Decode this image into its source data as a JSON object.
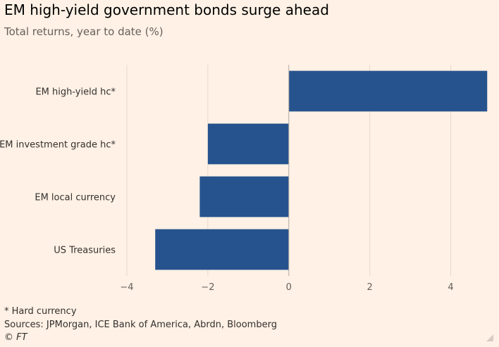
{
  "header": {
    "title": "EM high-yield government bonds surge ahead",
    "subtitle": "Total returns, year to date (%)"
  },
  "footer": {
    "footnote": "* Hard currency",
    "source": "Sources: JPMorgan, ICE Bank of America, Abrdn, Bloomberg",
    "copyright": "© FT"
  },
  "icons": {
    "corner": "resize-handle-icon"
  },
  "colors": {
    "background": "#fff1e5",
    "bar": "#26538d",
    "grid": "#e6d9ce",
    "zero_line": "#b3aaa4"
  },
  "chart_data": {
    "type": "bar",
    "orientation": "horizontal",
    "title": "EM high-yield government bonds surge ahead",
    "subtitle": "Total returns, year to date (%)",
    "categories": [
      "EM high-yield hc*",
      "EM investment grade hc*",
      "EM local currency",
      "US Treasuries"
    ],
    "values": [
      4.9,
      -2.0,
      -2.2,
      -3.3
    ],
    "xlim": [
      -4,
      5
    ],
    "xticks": [
      -4,
      -2,
      0,
      2,
      4
    ],
    "xlabel": "",
    "ylabel": "",
    "grid": "vertical"
  }
}
